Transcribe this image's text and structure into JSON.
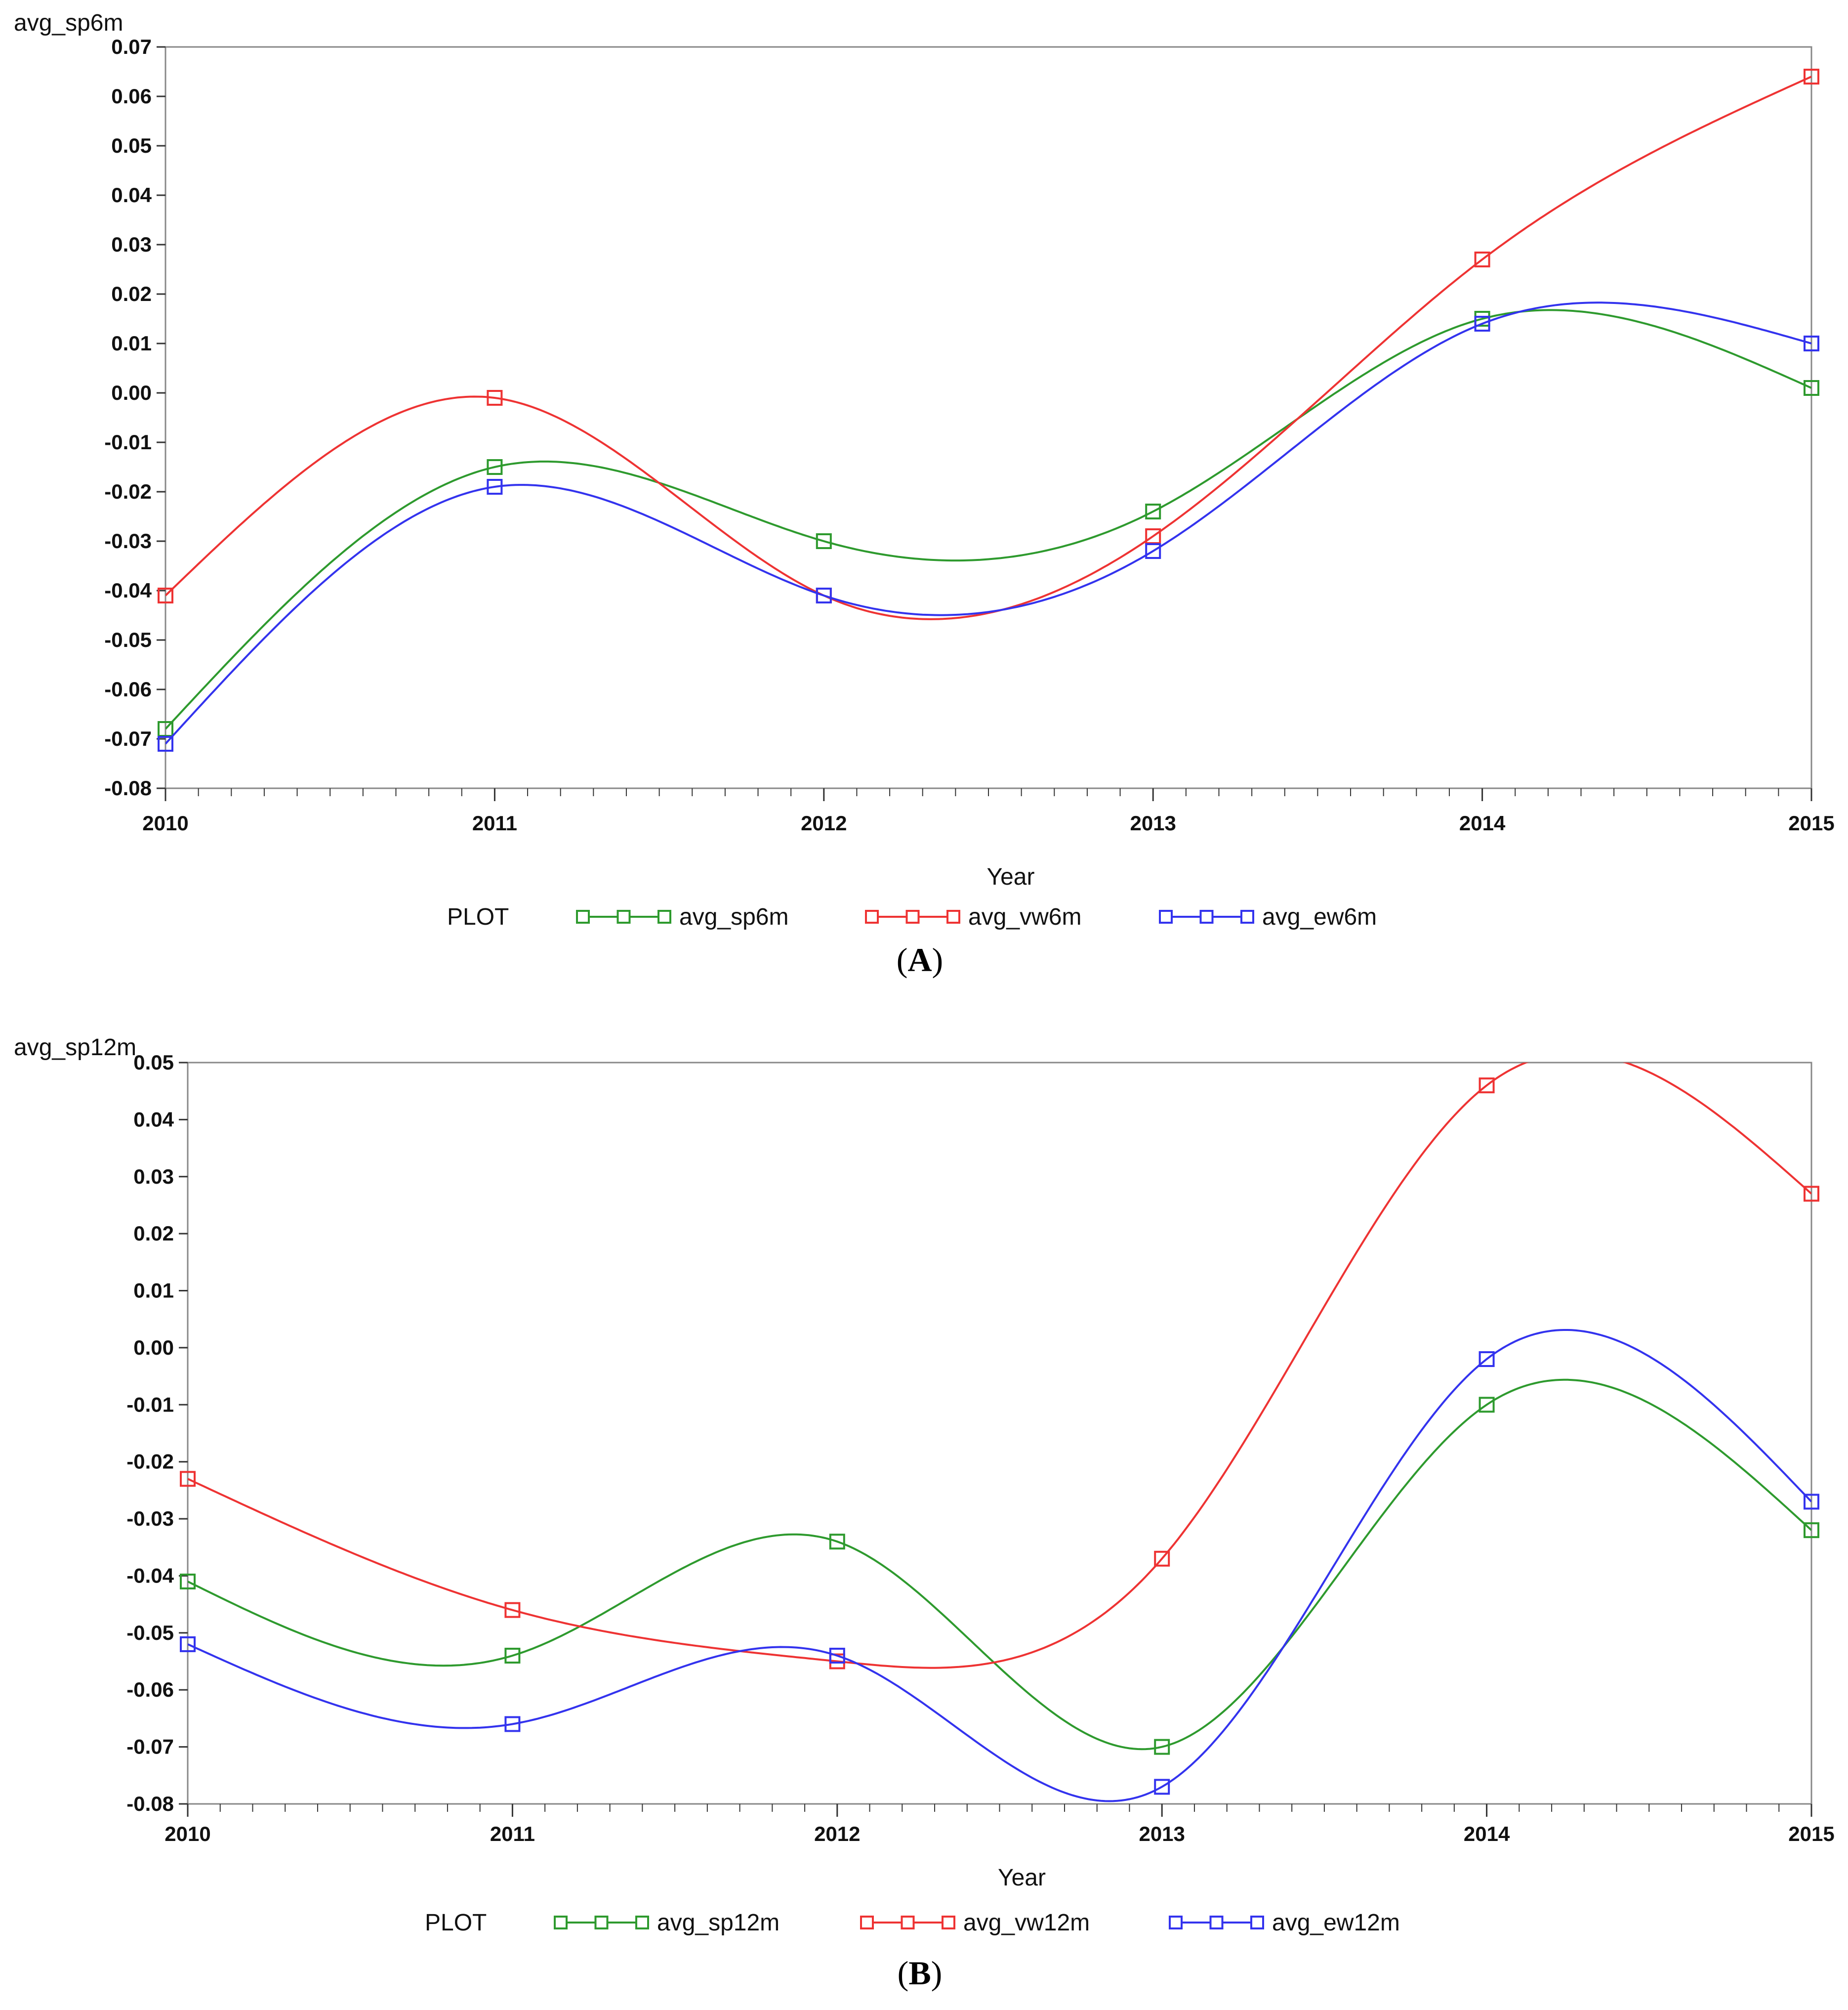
{
  "chart_data": [
    {
      "type": "line",
      "panel": "A",
      "caption": {
        "open": "(",
        "letter": "A",
        "close": ")"
      },
      "ylabel": "avg_sp6m",
      "xlabel": "Year",
      "legend_title": "PLOT",
      "x": [
        2010,
        2011,
        2012,
        2013,
        2014,
        2015
      ],
      "xlim": [
        2010,
        2015
      ],
      "ylim": [
        -0.08,
        0.07
      ],
      "yticks": [
        0.07,
        0.06,
        0.05,
        0.04,
        0.03,
        0.02,
        0.01,
        0.0,
        -0.01,
        -0.02,
        -0.03,
        -0.04,
        -0.05,
        -0.06,
        -0.07,
        -0.08
      ],
      "ytick_labels": [
        "0.07",
        "0.06",
        "0.05",
        "0.04",
        "0.03",
        "0.02",
        "0.01",
        "0.00",
        "-0.01",
        "-0.02",
        "-0.03",
        "-0.04",
        "-0.05",
        "-0.06",
        "-0.07",
        "-0.08"
      ],
      "xtick_labels": [
        "2010",
        "2011",
        "2012",
        "2013",
        "2014",
        "2015"
      ],
      "series": [
        {
          "name": "avg_sp6m",
          "color": "#2e9a2e",
          "values": [
            -0.068,
            -0.015,
            -0.03,
            -0.024,
            0.015,
            0.001
          ]
        },
        {
          "name": "avg_vw6m",
          "color": "#ee3333",
          "values": [
            -0.041,
            -0.001,
            -0.041,
            -0.029,
            0.027,
            0.064
          ]
        },
        {
          "name": "avg_ew6m",
          "color": "#3333ee",
          "values": [
            -0.071,
            -0.019,
            -0.041,
            -0.032,
            0.014,
            0.01
          ]
        }
      ]
    },
    {
      "type": "line",
      "panel": "B",
      "caption": {
        "open": "(",
        "letter": "B",
        "close": ")"
      },
      "ylabel": "avg_sp12m",
      "xlabel": "Year",
      "legend_title": "PLOT",
      "x": [
        2010,
        2011,
        2012,
        2013,
        2014,
        2015
      ],
      "xlim": [
        2010,
        2015
      ],
      "ylim": [
        -0.08,
        0.05
      ],
      "yticks": [
        0.05,
        0.04,
        0.03,
        0.02,
        0.01,
        0.0,
        -0.01,
        -0.02,
        -0.03,
        -0.04,
        -0.05,
        -0.06,
        -0.07,
        -0.08
      ],
      "ytick_labels": [
        "0.05",
        "0.04",
        "0.03",
        "0.02",
        "0.01",
        "0.00",
        "-0.01",
        "-0.02",
        "-0.03",
        "-0.04",
        "-0.05",
        "-0.06",
        "-0.07",
        "-0.08"
      ],
      "xtick_labels": [
        "2010",
        "2011",
        "2012",
        "2013",
        "2014",
        "2015"
      ],
      "series": [
        {
          "name": "avg_sp12m",
          "color": "#2e9a2e",
          "values": [
            -0.041,
            -0.054,
            -0.034,
            -0.07,
            -0.01,
            -0.032
          ]
        },
        {
          "name": "avg_vw12m",
          "color": "#ee3333",
          "values": [
            -0.023,
            -0.046,
            -0.055,
            -0.037,
            0.046,
            0.027
          ]
        },
        {
          "name": "avg_ew12m",
          "color": "#3333ee",
          "values": [
            -0.052,
            -0.066,
            -0.054,
            -0.077,
            -0.002,
            -0.027
          ]
        }
      ]
    }
  ]
}
